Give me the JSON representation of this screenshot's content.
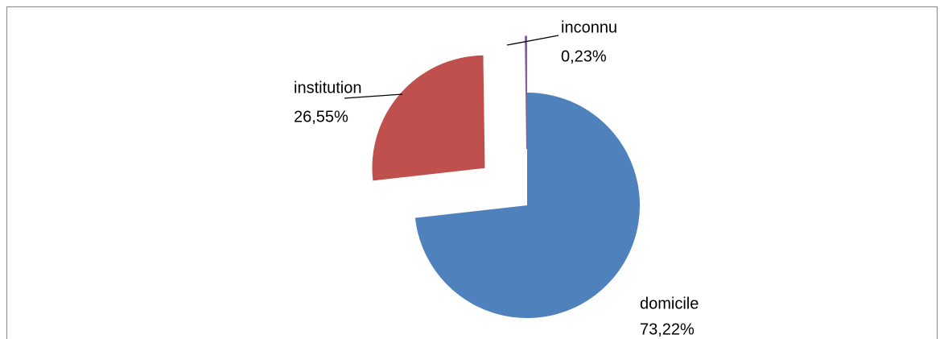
{
  "chart_data": {
    "type": "pie",
    "categories": [
      "domicile",
      "institution",
      "inconnu"
    ],
    "values": [
      73.22,
      26.55,
      0.23
    ],
    "value_labels": [
      "73,22%",
      "26,55%",
      "0,23%"
    ],
    "colors": [
      "#4f81bd",
      "#c0504d",
      "#8064a2"
    ],
    "exploded": true
  }
}
